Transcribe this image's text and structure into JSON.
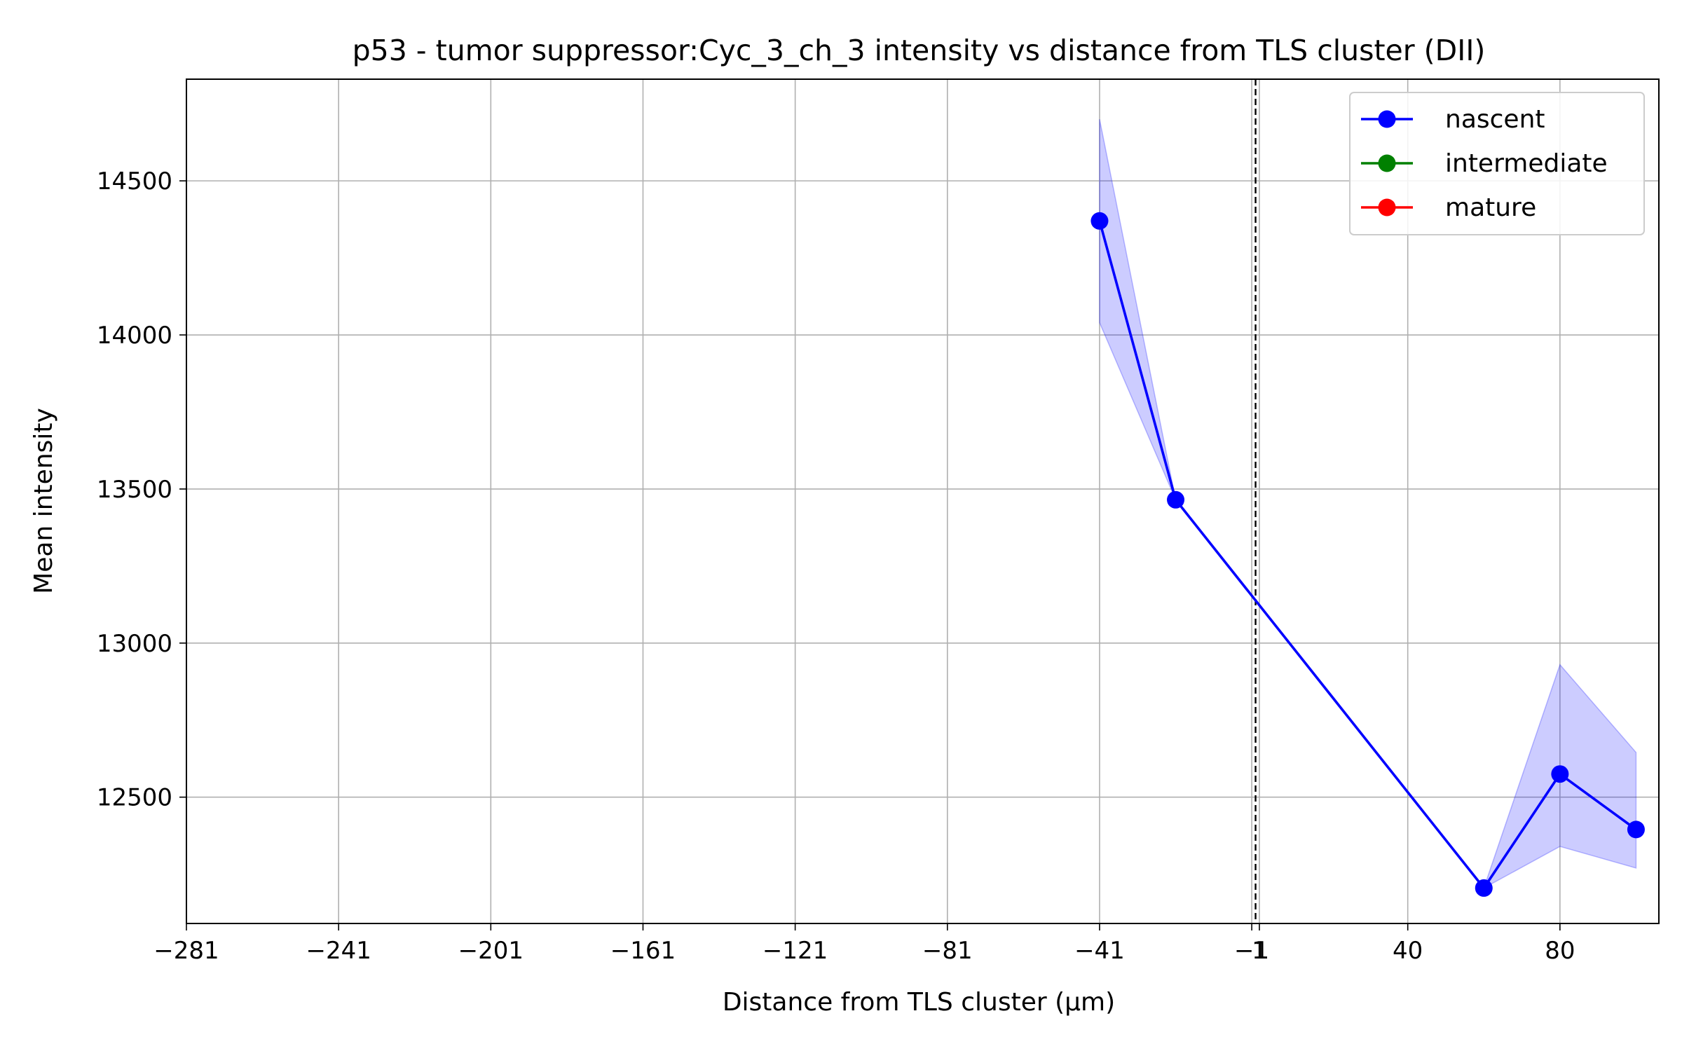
{
  "chart_data": {
    "type": "line",
    "title": "p53 - tumor suppressor:Cyc_3_ch_3 intensity vs distance from TLS cluster (DII)",
    "xlabel": "Distance from TLS cluster (μm)",
    "ylabel": "Mean intensity",
    "xlim": [
      -281,
      106
    ],
    "ylim": [
      12090,
      14830
    ],
    "x_ticks": [
      -281,
      -241,
      -201,
      -161,
      -121,
      -81,
      -41,
      -1,
      1,
      40,
      80
    ],
    "x_tick_labels": [
      "−281",
      "−241",
      "−201",
      "−161",
      "−121",
      "−81",
      "−41",
      "−1",
      "1",
      "40",
      "80"
    ],
    "y_ticks": [
      12500,
      13000,
      13500,
      14000,
      14500
    ],
    "y_tick_labels": [
      "12500",
      "13000",
      "13500",
      "14000",
      "14500"
    ],
    "grid": true,
    "reference_line_x": 0,
    "legend_position": "top-right",
    "series": [
      {
        "name": "nascent",
        "color": "#0000ff",
        "x": [
          -41,
          -21,
          60,
          80,
          100
        ],
        "y": [
          14370,
          13465,
          12205,
          12575,
          12395
        ],
        "ci_lower": [
          14040,
          13465,
          12205,
          12340,
          12270
        ],
        "ci_upper": [
          14700,
          13465,
          12205,
          12930,
          12645
        ]
      },
      {
        "name": "intermediate",
        "color": "#008000",
        "x": [],
        "y": []
      },
      {
        "name": "mature",
        "color": "#ff0000",
        "x": [],
        "y": []
      }
    ]
  }
}
